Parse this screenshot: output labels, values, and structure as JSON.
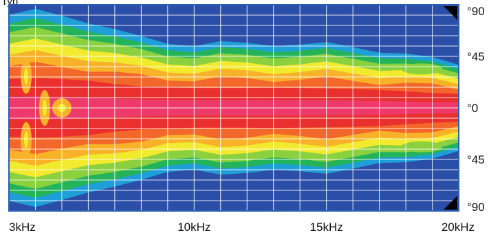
{
  "chart_data": {
    "type": "heatmap",
    "title_fragment": "Typ",
    "x_axis": {
      "ticks": [
        {
          "value": 3000,
          "label": "3kHz"
        },
        {
          "value": 10000,
          "label": "10kHz"
        },
        {
          "value": 15000,
          "label": "15kHz"
        },
        {
          "value": 20000,
          "label": "20kHz"
        }
      ],
      "unit": "Hz",
      "xlim": [
        3000,
        20000
      ]
    },
    "y_axis": {
      "ticks": [
        {
          "value": 90,
          "label": "°90"
        },
        {
          "value": 45,
          "label": "°45"
        },
        {
          "value": 0,
          "label": "°0"
        },
        {
          "value": -45,
          "label": "°45"
        },
        {
          "value": -90,
          "label": "°90"
        }
      ],
      "unit": "degrees",
      "ylim": [
        -90,
        90
      ]
    },
    "grid": true,
    "colorscale": [
      "#2b4ea8",
      "#1f9fd8",
      "#25b35a",
      "#8bd13f",
      "#f2ea2f",
      "#f7b22a",
      "#f2672a",
      "#ea2f2f",
      "#ee3a6a"
    ],
    "beamwidth_series": {
      "description": "half-angle (deg) of the -3/-6 dB contour across frequency",
      "x": [
        3000,
        4000,
        5000,
        6000,
        7000,
        8000,
        9000,
        10000,
        11000,
        12000,
        13000,
        14000,
        15000,
        16000,
        17000,
        18000,
        19000,
        20000
      ],
      "values": [
        70,
        72,
        70,
        66,
        58,
        52,
        50,
        48,
        48,
        48,
        49,
        48,
        47,
        46,
        44,
        40,
        36,
        34
      ]
    }
  }
}
